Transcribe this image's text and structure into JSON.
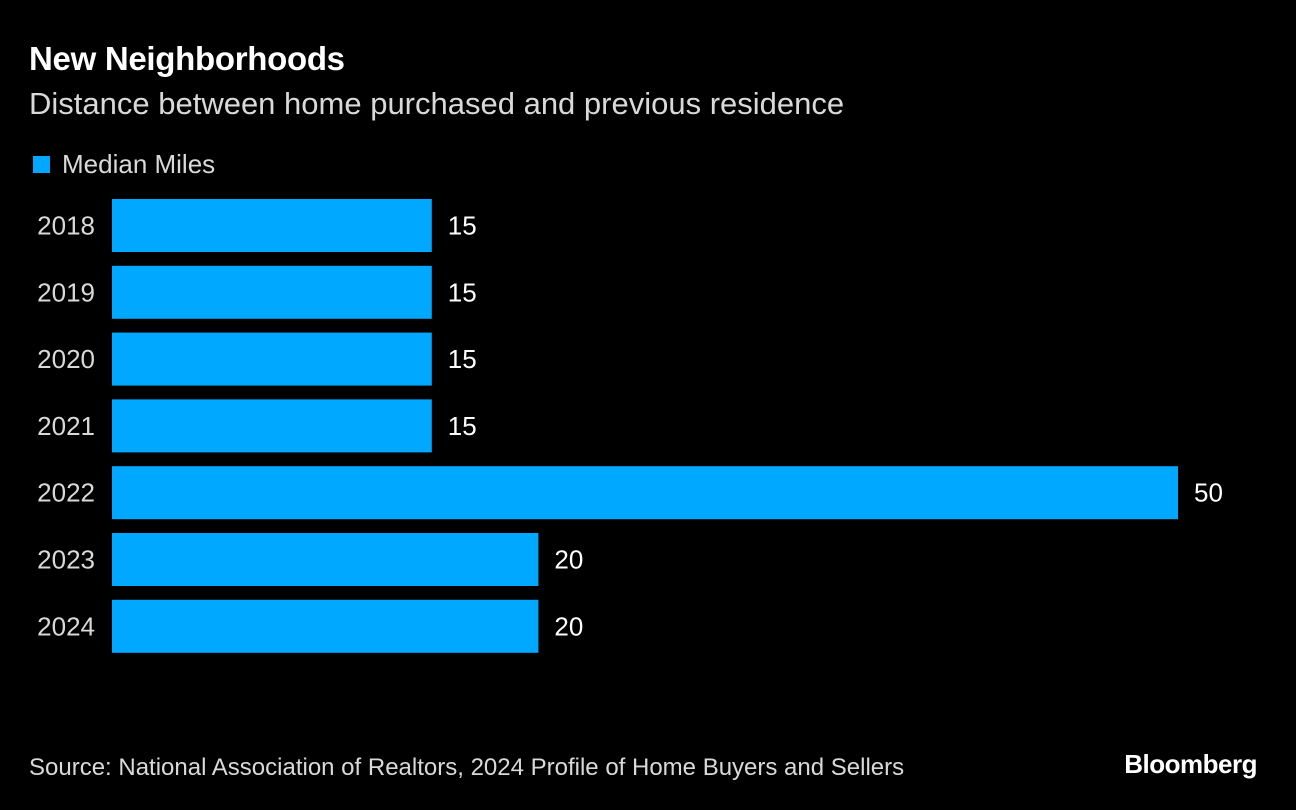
{
  "title": "New Neighborhoods",
  "subtitle": "Distance between home purchased and previous residence",
  "footer": {
    "source": "Source: National Association of Realtors, 2024 Profile of Home Buyers and Sellers",
    "brand": "Bloomberg"
  },
  "colors": {
    "background": "#000000",
    "bar": "#00a8ff",
    "text": "#ffffff",
    "muted_text": "#d9d9d9"
  },
  "chart_data": {
    "type": "bar",
    "orientation": "horizontal",
    "categories": [
      "2018",
      "2019",
      "2020",
      "2021",
      "2022",
      "2023",
      "2024"
    ],
    "series": [
      {
        "name": "Median Miles",
        "values": [
          15,
          15,
          15,
          15,
          50,
          20,
          20
        ]
      }
    ],
    "xlim": [
      0,
      50
    ],
    "data_labels": [
      "15",
      "15",
      "15",
      "15",
      "50",
      "20",
      "20"
    ],
    "legend_position": "top-left",
    "grid": false
  }
}
